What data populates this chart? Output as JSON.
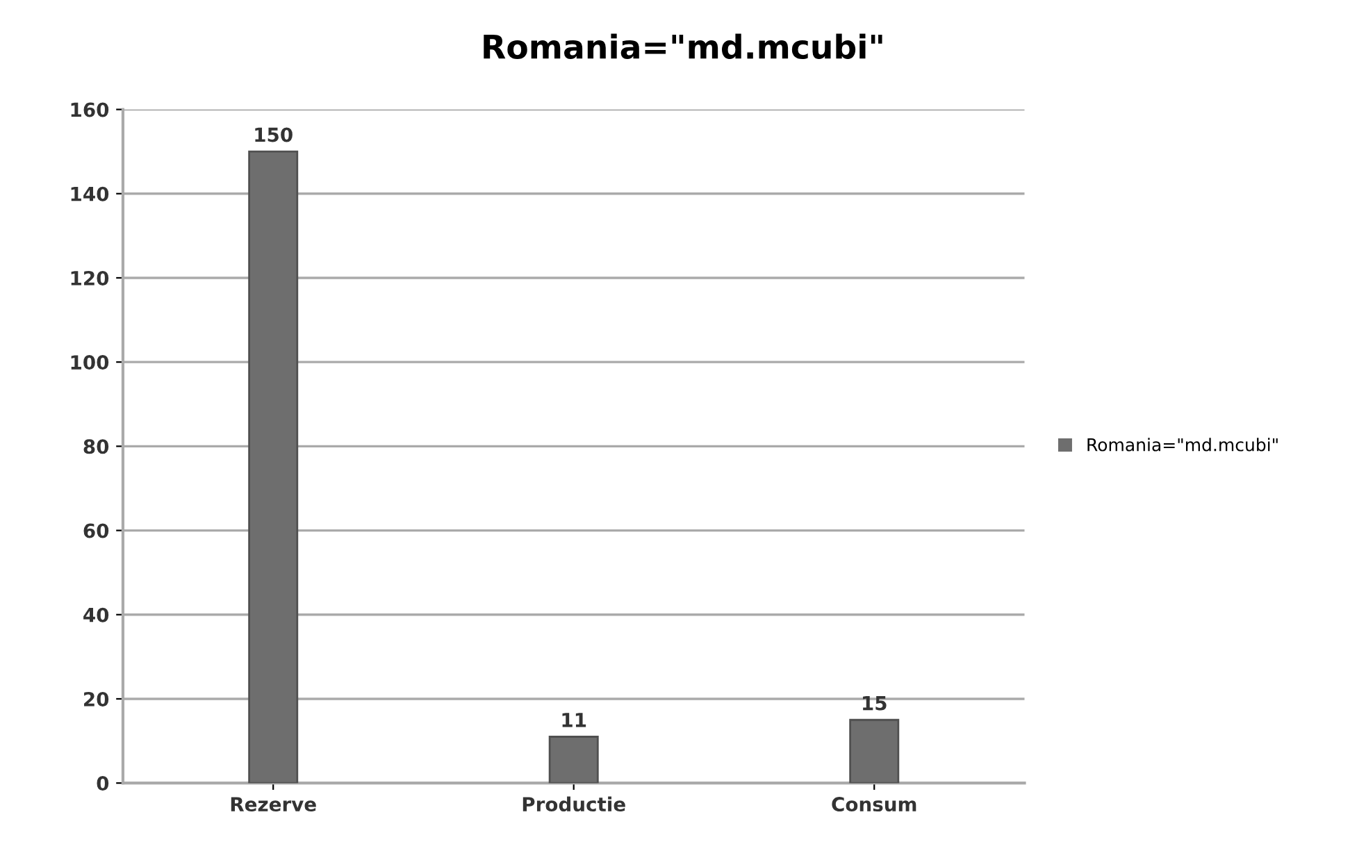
{
  "chart_data": {
    "type": "bar",
    "title": "Romania=\"md.mcubi\"",
    "categories": [
      "Rezerve",
      "Productie",
      "Consum"
    ],
    "series": [
      {
        "name": "Romania=\"md.mcubi\"",
        "color": "#6e6e6e",
        "values": [
          150,
          11,
          15
        ]
      }
    ],
    "ylim": [
      0,
      160
    ],
    "yticks": [
      0,
      20,
      40,
      60,
      80,
      100,
      120,
      140,
      160
    ],
    "grid": "y",
    "legend": "right",
    "data_labels": true
  }
}
